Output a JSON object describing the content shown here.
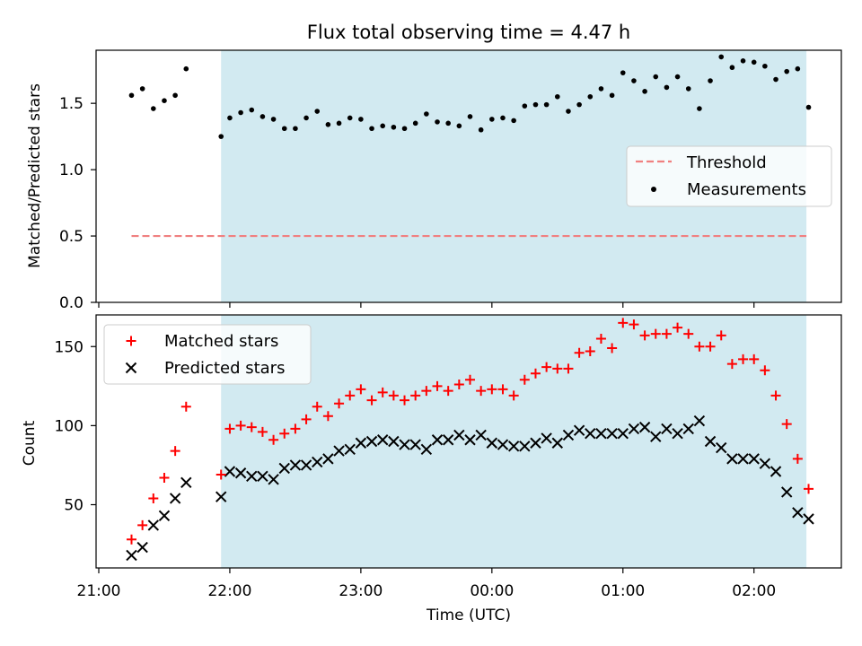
{
  "chart_data": [
    {
      "type": "scatter",
      "title": "Flux total observing time = 4.47 h",
      "xlabel": "",
      "ylabel": "Matched/Predicted stars",
      "xlim": [
        "21:00",
        "02:40"
      ],
      "ylim": [
        0,
        1.9
      ],
      "yticks": [
        0.0,
        0.5,
        1.0,
        1.5
      ],
      "ytick_labels": [
        "0.0",
        "0.5",
        "1.0",
        "1.5"
      ],
      "shaded_region": {
        "start": "21:56",
        "end": "02:24",
        "color": "#add8e6"
      },
      "threshold": {
        "name": "Threshold",
        "value": 0.5,
        "from": "21:15",
        "to": "02:24",
        "color": "#f08080"
      },
      "legend": {
        "position": "right",
        "entries": [
          "Threshold",
          "Measurements"
        ]
      },
      "series": [
        {
          "name": "Measurements",
          "marker": "dot",
          "color": "#000000",
          "x": [
            "21:15",
            "21:20",
            "21:25",
            "21:30",
            "21:35",
            "21:40",
            "21:56",
            "22:00",
            "22:05",
            "22:10",
            "22:15",
            "22:20",
            "22:25",
            "22:30",
            "22:35",
            "22:40",
            "22:45",
            "22:50",
            "22:55",
            "23:00",
            "23:05",
            "23:10",
            "23:15",
            "23:20",
            "23:25",
            "23:30",
            "23:35",
            "23:40",
            "23:45",
            "23:50",
            "23:55",
            "00:00",
            "00:05",
            "00:10",
            "00:15",
            "00:20",
            "00:25",
            "00:30",
            "00:35",
            "00:40",
            "00:45",
            "00:50",
            "00:55",
            "01:00",
            "01:05",
            "01:10",
            "01:15",
            "01:20",
            "01:25",
            "01:30",
            "01:35",
            "01:40",
            "01:45",
            "01:50",
            "01:55",
            "02:00",
            "02:05",
            "02:10",
            "02:15",
            "02:20",
            "02:25"
          ],
          "y": [
            1.56,
            1.61,
            1.46,
            1.52,
            1.56,
            1.76,
            1.25,
            1.39,
            1.43,
            1.45,
            1.4,
            1.38,
            1.31,
            1.31,
            1.39,
            1.44,
            1.34,
            1.35,
            1.39,
            1.38,
            1.31,
            1.33,
            1.32,
            1.31,
            1.35,
            1.42,
            1.36,
            1.35,
            1.33,
            1.4,
            1.3,
            1.38,
            1.39,
            1.37,
            1.48,
            1.49,
            1.49,
            1.55,
            1.44,
            1.49,
            1.55,
            1.61,
            1.56,
            1.73,
            1.67,
            1.59,
            1.7,
            1.62,
            1.7,
            1.61,
            1.46,
            1.67,
            1.85,
            1.77,
            1.82,
            1.81,
            1.78,
            1.68,
            1.74,
            1.76,
            1.47
          ]
        }
      ]
    },
    {
      "type": "scatter",
      "title": "",
      "xlabel": "Time (UTC)",
      "ylabel": "Count",
      "xlim": [
        "21:00",
        "02:40"
      ],
      "ylim": [
        10,
        170
      ],
      "yticks": [
        50,
        100,
        150
      ],
      "ytick_labels": [
        "50",
        "100",
        "150"
      ],
      "xticks": [
        "21:00",
        "22:00",
        "23:00",
        "00:00",
        "01:00",
        "02:00"
      ],
      "shaded_region": {
        "start": "21:56",
        "end": "02:24",
        "color": "#add8e6"
      },
      "legend": {
        "position": "top-left",
        "entries": [
          "Matched stars",
          "Predicted stars"
        ]
      },
      "series": [
        {
          "name": "Matched stars",
          "marker": "plus",
          "color": "#ff0000",
          "x": [
            "21:15",
            "21:20",
            "21:25",
            "21:30",
            "21:35",
            "21:40",
            "21:56",
            "22:00",
            "22:05",
            "22:10",
            "22:15",
            "22:20",
            "22:25",
            "22:30",
            "22:35",
            "22:40",
            "22:45",
            "22:50",
            "22:55",
            "23:00",
            "23:05",
            "23:10",
            "23:15",
            "23:20",
            "23:25",
            "23:30",
            "23:35",
            "23:40",
            "23:45",
            "23:50",
            "23:55",
            "00:00",
            "00:05",
            "00:10",
            "00:15",
            "00:20",
            "00:25",
            "00:30",
            "00:35",
            "00:40",
            "00:45",
            "00:50",
            "00:55",
            "01:00",
            "01:05",
            "01:10",
            "01:15",
            "01:20",
            "01:25",
            "01:30",
            "01:35",
            "01:40",
            "01:45",
            "01:50",
            "01:55",
            "02:00",
            "02:05",
            "02:10",
            "02:15",
            "02:20",
            "02:25"
          ],
          "y": [
            28,
            37,
            54,
            67,
            84,
            112,
            69,
            98,
            100,
            99,
            96,
            91,
            95,
            98,
            104,
            112,
            106,
            114,
            119,
            123,
            116,
            121,
            119,
            116,
            119,
            122,
            125,
            122,
            126,
            129,
            122,
            123,
            123,
            119,
            129,
            133,
            137,
            136,
            136,
            146,
            147,
            155,
            149,
            165,
            164,
            157,
            158,
            158,
            162,
            158,
            150,
            150,
            157,
            139,
            142,
            142,
            135,
            119,
            101,
            79,
            60
          ]
        },
        {
          "name": "Predicted stars",
          "marker": "x",
          "color": "#000000",
          "x": [
            "21:15",
            "21:20",
            "21:25",
            "21:30",
            "21:35",
            "21:40",
            "21:56",
            "22:00",
            "22:05",
            "22:10",
            "22:15",
            "22:20",
            "22:25",
            "22:30",
            "22:35",
            "22:40",
            "22:45",
            "22:50",
            "22:55",
            "23:00",
            "23:05",
            "23:10",
            "23:15",
            "23:20",
            "23:25",
            "23:30",
            "23:35",
            "23:40",
            "23:45",
            "23:50",
            "23:55",
            "00:00",
            "00:05",
            "00:10",
            "00:15",
            "00:20",
            "00:25",
            "00:30",
            "00:35",
            "00:40",
            "00:45",
            "00:50",
            "00:55",
            "01:00",
            "01:05",
            "01:10",
            "01:15",
            "01:20",
            "01:25",
            "01:30",
            "01:35",
            "01:40",
            "01:45",
            "01:50",
            "01:55",
            "02:00",
            "02:05",
            "02:10",
            "02:15",
            "02:20",
            "02:25"
          ],
          "y": [
            18,
            23,
            37,
            43,
            54,
            64,
            55,
            71,
            70,
            68,
            68,
            66,
            73,
            75,
            75,
            77,
            79,
            84,
            85,
            89,
            90,
            91,
            90,
            88,
            88,
            85,
            91,
            91,
            94,
            91,
            94,
            89,
            88,
            87,
            87,
            89,
            92,
            89,
            94,
            97,
            95,
            95,
            95,
            95,
            98,
            99,
            93,
            98,
            95,
            98,
            103,
            90,
            86,
            79,
            79,
            79,
            76,
            71,
            58,
            45,
            41
          ]
        }
      ]
    }
  ]
}
